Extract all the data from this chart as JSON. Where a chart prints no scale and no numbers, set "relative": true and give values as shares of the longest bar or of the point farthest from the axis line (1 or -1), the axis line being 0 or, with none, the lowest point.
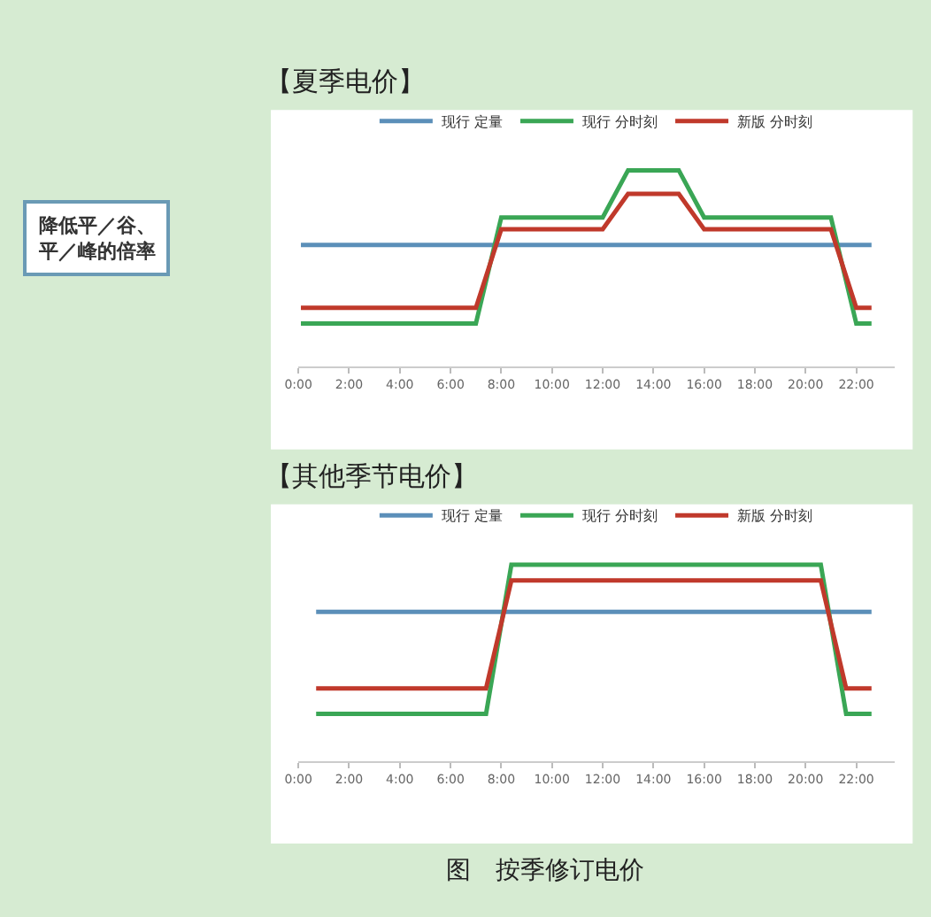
{
  "chart_data": [
    {
      "type": "line",
      "title": "【夏季电价】",
      "relative": true,
      "legend": "top",
      "marker": "none",
      "line_style": "solid",
      "tick_labels": "x",
      "xlim": [
        0,
        23.5
      ],
      "xticks": [
        {
          "value": 0,
          "label": "0:00"
        },
        {
          "value": 2,
          "label": "2:00"
        },
        {
          "value": 4,
          "label": "4:00"
        },
        {
          "value": 6,
          "label": "6:00"
        },
        {
          "value": 8,
          "label": "8:00"
        },
        {
          "value": 10,
          "label": "10:00"
        },
        {
          "value": 12,
          "label": "12:00"
        },
        {
          "value": 14,
          "label": "14:00"
        },
        {
          "value": 16,
          "label": "16:00"
        },
        {
          "value": 18,
          "label": "18:00"
        },
        {
          "value": 20,
          "label": "20:00"
        },
        {
          "value": 22,
          "label": "22:00"
        }
      ],
      "series": [
        {
          "name": "现行 定量",
          "color": "#5b8fb9",
          "x": [
            0.1,
            22.6
          ],
          "values": [
            0.62,
            0.62
          ]
        },
        {
          "name": "现行 分时刻",
          "color": "#3aa655",
          "x": [
            0.1,
            7,
            8,
            12,
            13,
            15,
            16,
            21,
            22,
            22.6
          ],
          "values": [
            0.22,
            0.22,
            0.76,
            0.76,
            1,
            1,
            0.76,
            0.76,
            0.22,
            0.22
          ]
        },
        {
          "name": "新版 分时刻",
          "color": "#c0392b",
          "x": [
            0.1,
            7,
            8,
            12,
            13,
            15,
            16,
            21,
            22,
            22.6
          ],
          "values": [
            0.3,
            0.3,
            0.7,
            0.7,
            0.88,
            0.88,
            0.7,
            0.7,
            0.3,
            0.3
          ]
        }
      ],
      "annotations": [
        "降低平／谷、平／峰的倍率"
      ]
    },
    {
      "type": "line",
      "title": "【其他季节电价】",
      "relative": true,
      "legend": "top",
      "marker": "none",
      "line_style": "solid",
      "tick_labels": "x",
      "xlim": [
        0,
        23.5
      ],
      "xticks": [
        {
          "value": 0,
          "label": "0:00"
        },
        {
          "value": 2,
          "label": "2:00"
        },
        {
          "value": 4,
          "label": "4:00"
        },
        {
          "value": 6,
          "label": "6:00"
        },
        {
          "value": 8,
          "label": "8:00"
        },
        {
          "value": 10,
          "label": "10:00"
        },
        {
          "value": 12,
          "label": "12:00"
        },
        {
          "value": 14,
          "label": "14:00"
        },
        {
          "value": 16,
          "label": "16:00"
        },
        {
          "value": 18,
          "label": "18:00"
        },
        {
          "value": 20,
          "label": "20:00"
        },
        {
          "value": 22,
          "label": "22:00"
        }
      ],
      "series": [
        {
          "name": "现行 定量",
          "color": "#5b8fb9",
          "x": [
            0.7,
            22.6
          ],
          "values": [
            0.76,
            0.76
          ]
        },
        {
          "name": "现行 分时刻",
          "color": "#3aa655",
          "x": [
            0.7,
            7.4,
            8.4,
            20.6,
            21.6,
            22.6
          ],
          "values": [
            0.24,
            0.24,
            1,
            1,
            0.24,
            0.24
          ]
        },
        {
          "name": "新版 分时刻",
          "color": "#c0392b",
          "x": [
            0.7,
            7.4,
            8.4,
            20.6,
            21.6,
            22.6
          ],
          "values": [
            0.37,
            0.37,
            0.92,
            0.92,
            0.37,
            0.37
          ]
        }
      ],
      "annotations": [
        "图　按季修订电价"
      ]
    }
  ]
}
